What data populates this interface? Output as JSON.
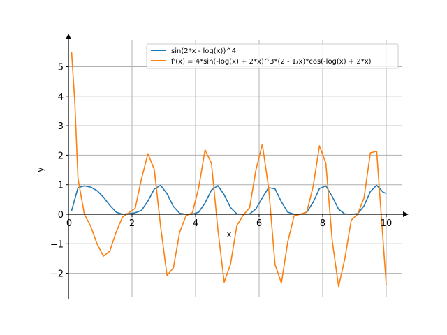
{
  "chart_data": {
    "type": "line",
    "xlabel": "x",
    "ylabel": "y",
    "xlim": [
      0,
      10.5
    ],
    "ylim": [
      -2.85,
      6.0
    ],
    "grid": true,
    "legend_position": "top-right",
    "x_ticks": [
      "0",
      "2",
      "4",
      "6",
      "8",
      "10"
    ],
    "y_ticks": [
      "−2",
      "−1",
      "0",
      "1",
      "2",
      "3",
      "4",
      "5"
    ],
    "series": [
      {
        "name": "sin(2*x - log(x))^4",
        "color": "#1f77b4",
        "x": [
          0.1,
          0.3,
          0.5,
          0.7,
          0.9,
          1.1,
          1.3,
          1.5,
          1.7,
          1.9,
          2.1,
          2.3,
          2.5,
          2.7,
          2.9,
          3.1,
          3.3,
          3.5,
          3.7,
          3.9,
          4.1,
          4.3,
          4.5,
          4.7,
          4.9,
          5.1,
          5.3,
          5.5,
          5.7,
          5.9,
          6.1,
          6.3,
          6.5,
          6.7,
          6.9,
          7.1,
          7.3,
          7.5,
          7.7,
          7.9,
          8.1,
          8.3,
          8.5,
          8.7,
          8.9,
          9.1,
          9.3,
          9.5,
          9.7,
          9.9,
          10.0
        ],
        "y": [
          0.12,
          0.9,
          0.96,
          0.92,
          0.8,
          0.58,
          0.3,
          0.07,
          0.0,
          0.02,
          0.05,
          0.13,
          0.45,
          0.85,
          0.98,
          0.7,
          0.27,
          0.03,
          0.0,
          0.0,
          0.07,
          0.38,
          0.82,
          0.97,
          0.66,
          0.23,
          0.01,
          0.0,
          0.01,
          0.18,
          0.56,
          0.9,
          0.86,
          0.42,
          0.07,
          0.0,
          0.0,
          0.07,
          0.41,
          0.87,
          0.96,
          0.6,
          0.17,
          0.01,
          0.0,
          0.02,
          0.28,
          0.77,
          0.98,
          0.75,
          0.7
        ]
      },
      {
        "name": "f'(x) = 4*sin(-log(x) + 2*x)^3*(2 - 1/x)*cos(-log(x) + 2*x)",
        "color": "#ff7f0e",
        "x": [
          0.1,
          0.2,
          0.3,
          0.5,
          0.7,
          0.9,
          1.1,
          1.3,
          1.5,
          1.7,
          1.9,
          2.1,
          2.3,
          2.5,
          2.7,
          2.9,
          3.1,
          3.3,
          3.5,
          3.7,
          3.9,
          4.1,
          4.3,
          4.5,
          4.7,
          4.9,
          5.1,
          5.3,
          5.5,
          5.7,
          5.9,
          6.1,
          6.3,
          6.5,
          6.7,
          6.9,
          7.1,
          7.3,
          7.5,
          7.7,
          7.9,
          8.1,
          8.3,
          8.5,
          8.7,
          8.9,
          9.1,
          9.3,
          9.5,
          9.7,
          10.0
        ],
        "y": [
          5.5,
          3.8,
          1.2,
          0.0,
          -0.4,
          -1.0,
          -1.42,
          -1.25,
          -0.6,
          -0.1,
          0.05,
          0.2,
          1.2,
          2.05,
          1.52,
          -0.4,
          -2.07,
          -1.82,
          -0.6,
          -0.05,
          0.05,
          0.9,
          2.18,
          1.72,
          -0.5,
          -2.3,
          -1.7,
          -0.38,
          -0.03,
          0.22,
          1.5,
          2.37,
          0.9,
          -1.7,
          -2.33,
          -0.95,
          -0.05,
          0.0,
          0.08,
          0.95,
          2.32,
          1.72,
          -0.9,
          -2.45,
          -1.5,
          -0.2,
          0.0,
          0.55,
          2.08,
          2.13,
          -2.38
        ]
      }
    ]
  }
}
